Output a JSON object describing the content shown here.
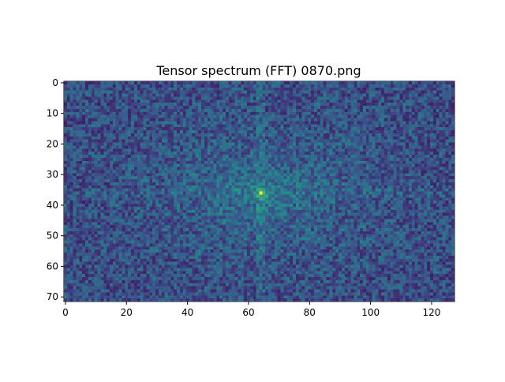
{
  "chart_data": {
    "type": "heatmap",
    "title": "Tensor spectrum (FFT) 0870.png",
    "xlabel": "",
    "ylabel": "",
    "rows": 72,
    "cols": 128,
    "xlim": [
      -0.5,
      127.5
    ],
    "ylim": [
      71.5,
      -0.5
    ],
    "xticks": [
      0,
      20,
      40,
      60,
      80,
      100,
      120
    ],
    "yticks": [
      0,
      10,
      20,
      30,
      40,
      50,
      60,
      70
    ],
    "peak": {
      "x": 64,
      "y": 36
    },
    "colormap": "viridis",
    "legend": "none",
    "grid": false
  },
  "colors": {
    "low": "#440154",
    "mid": "#21918c",
    "high": "#fde725",
    "axis": "#000000",
    "background": "#ffffff"
  }
}
